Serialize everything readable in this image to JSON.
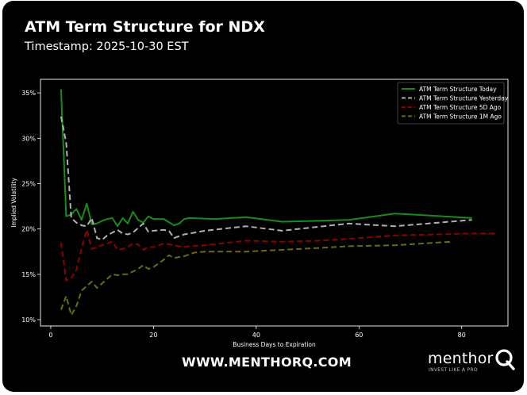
{
  "header": {
    "title": "ATM Term Structure for NDX",
    "subtitle": "Timestamp: 2025-10-30 EST"
  },
  "footer": {
    "url": "WWW.MENTHORQ.COM",
    "logo_text": "menthor",
    "logo_tagline": "INVEST LIKE A PRO",
    "logo_icon": "q-magnifier-icon"
  },
  "colors": {
    "background": "#000000",
    "text": "#ffffff",
    "today": "#1a8a1a",
    "yesterday": "#b0b0b0",
    "five_day": "#8b0000",
    "one_month": "#6b6b10"
  },
  "chart_data": {
    "type": "line",
    "title": "",
    "xlabel": "Business Days to Expiration",
    "ylabel": "Implied Volatility",
    "xlim": [
      -2,
      89
    ],
    "ylim": [
      9.3,
      36.5
    ],
    "x_ticks": [
      0,
      20,
      40,
      60,
      80
    ],
    "x_tick_labels": [
      "0",
      "20",
      "40",
      "60",
      "80"
    ],
    "y_ticks": [
      10,
      15,
      20,
      25,
      30,
      35
    ],
    "y_tick_labels": [
      "10%",
      "15%",
      "20%",
      "25%",
      "30%",
      "35%"
    ],
    "grid": false,
    "legend_position": "top-right",
    "series": [
      {
        "name": "ATM Term Structure Today",
        "color": "#1a8a1a",
        "dash": "solid",
        "x": [
          2,
          3,
          4,
          5,
          6,
          7,
          8,
          9,
          10,
          11,
          12,
          13,
          14,
          15,
          16,
          17,
          18,
          19,
          20,
          22,
          24,
          25,
          26,
          27,
          32,
          38,
          45,
          52,
          58,
          67,
          82
        ],
        "y": [
          35.4,
          21.4,
          21.6,
          22.2,
          21.0,
          22.8,
          20.5,
          20.6,
          20.9,
          21.1,
          21.2,
          20.3,
          21.2,
          20.6,
          21.9,
          21.0,
          20.7,
          21.4,
          21.1,
          21.1,
          20.4,
          20.6,
          21.1,
          21.2,
          21.1,
          21.3,
          20.8,
          20.9,
          21.0,
          21.7,
          21.2
        ]
      },
      {
        "name": "ATM Term Structure Yesterday",
        "color": "#b0b0b0",
        "dash": "dashed",
        "x": [
          2,
          3,
          4,
          5,
          6,
          7,
          8,
          9,
          10,
          11,
          12,
          13,
          14,
          15,
          16,
          17,
          18,
          19,
          20,
          22,
          23,
          24,
          26,
          27,
          30,
          38,
          45,
          58,
          67,
          82
        ],
        "y": [
          32.4,
          29.5,
          21.2,
          20.7,
          20.4,
          20.3,
          21.2,
          19.0,
          18.8,
          19.3,
          19.6,
          19.9,
          19.5,
          19.4,
          19.6,
          20.1,
          20.6,
          19.7,
          19.8,
          19.9,
          19.8,
          19.0,
          19.4,
          19.5,
          19.8,
          20.3,
          19.8,
          20.6,
          20.3,
          21.0
        ]
      },
      {
        "name": "ATM Term Structure 5D Ago",
        "color": "#8b0000",
        "dash": "dashed",
        "x": [
          2,
          3,
          4,
          5,
          6,
          7,
          8,
          9,
          10,
          11,
          12,
          13,
          14,
          15,
          16,
          17,
          18,
          19,
          20,
          22,
          24,
          26,
          27,
          30,
          38,
          45,
          52,
          58,
          67,
          82,
          87
        ],
        "y": [
          18.5,
          14.3,
          14.6,
          15.5,
          17.9,
          19.9,
          17.8,
          18.0,
          18.2,
          18.4,
          18.6,
          17.7,
          17.8,
          18.0,
          18.4,
          18.3,
          17.7,
          18.0,
          18.0,
          18.4,
          18.2,
          18.0,
          18.1,
          18.2,
          18.7,
          18.6,
          18.7,
          18.9,
          19.3,
          19.5,
          19.5
        ]
      },
      {
        "name": "ATM Term Structure 1M Ago",
        "color": "#6b6b10",
        "dash": "dashed",
        "x": [
          2,
          3,
          4,
          5,
          6,
          7,
          8,
          9,
          10,
          11,
          12,
          13,
          14,
          15,
          16,
          17,
          18,
          19,
          20,
          22,
          23,
          24,
          26,
          27,
          28,
          30,
          38,
          45,
          52,
          58,
          67,
          78
        ],
        "y": [
          11.1,
          12.6,
          10.5,
          11.5,
          13.2,
          13.7,
          14.2,
          13.5,
          14.0,
          14.5,
          15.0,
          14.9,
          15.0,
          15.0,
          15.3,
          15.6,
          16.0,
          15.6,
          15.8,
          16.6,
          17.1,
          16.8,
          17.0,
          17.2,
          17.4,
          17.5,
          17.5,
          17.7,
          17.9,
          18.1,
          18.2,
          18.6
        ]
      }
    ]
  }
}
